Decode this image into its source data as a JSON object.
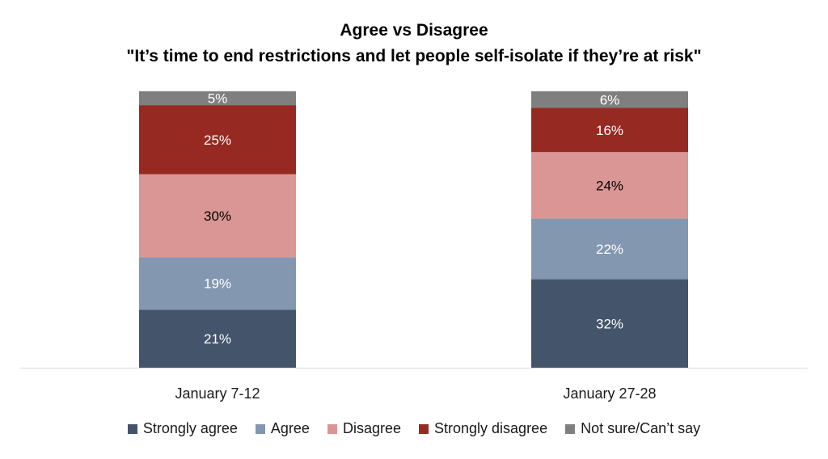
{
  "chart_data": {
    "type": "bar",
    "stacked": true,
    "percent": true,
    "title": "Agree vs Disagree",
    "subtitle": "\"It’s time to end restrictions and let people self-isolate if they’re at risk\"",
    "xlabel": "",
    "ylabel": "",
    "ylim": [
      0,
      100
    ],
    "grid": false,
    "legend_position": "bottom",
    "categories": [
      "January 7-12",
      "January 27-28"
    ],
    "series": [
      {
        "name": "Strongly agree",
        "color": "#44546a",
        "label_color": "#ffffff",
        "values": [
          21,
          32
        ],
        "labels": [
          "21%",
          "32%"
        ]
      },
      {
        "name": "Agree",
        "color": "#8497b0",
        "label_color": "#ffffff",
        "values": [
          19,
          22
        ],
        "labels": [
          "19%",
          "22%"
        ]
      },
      {
        "name": "Disagree",
        "color": "#da9694",
        "label_color": "#000000",
        "values": [
          30,
          24
        ],
        "labels": [
          "30%",
          "24%"
        ]
      },
      {
        "name": "Strongly disagree",
        "color": "#962a22",
        "label_color": "#ffffff",
        "values": [
          25,
          16
        ],
        "labels": [
          "25%",
          "16%"
        ]
      },
      {
        "name": "Not sure/Can’t say",
        "color": "#7f7f7f",
        "label_color": "#ffffff",
        "values": [
          5,
          6
        ],
        "labels": [
          "5%",
          "6%"
        ]
      }
    ]
  }
}
